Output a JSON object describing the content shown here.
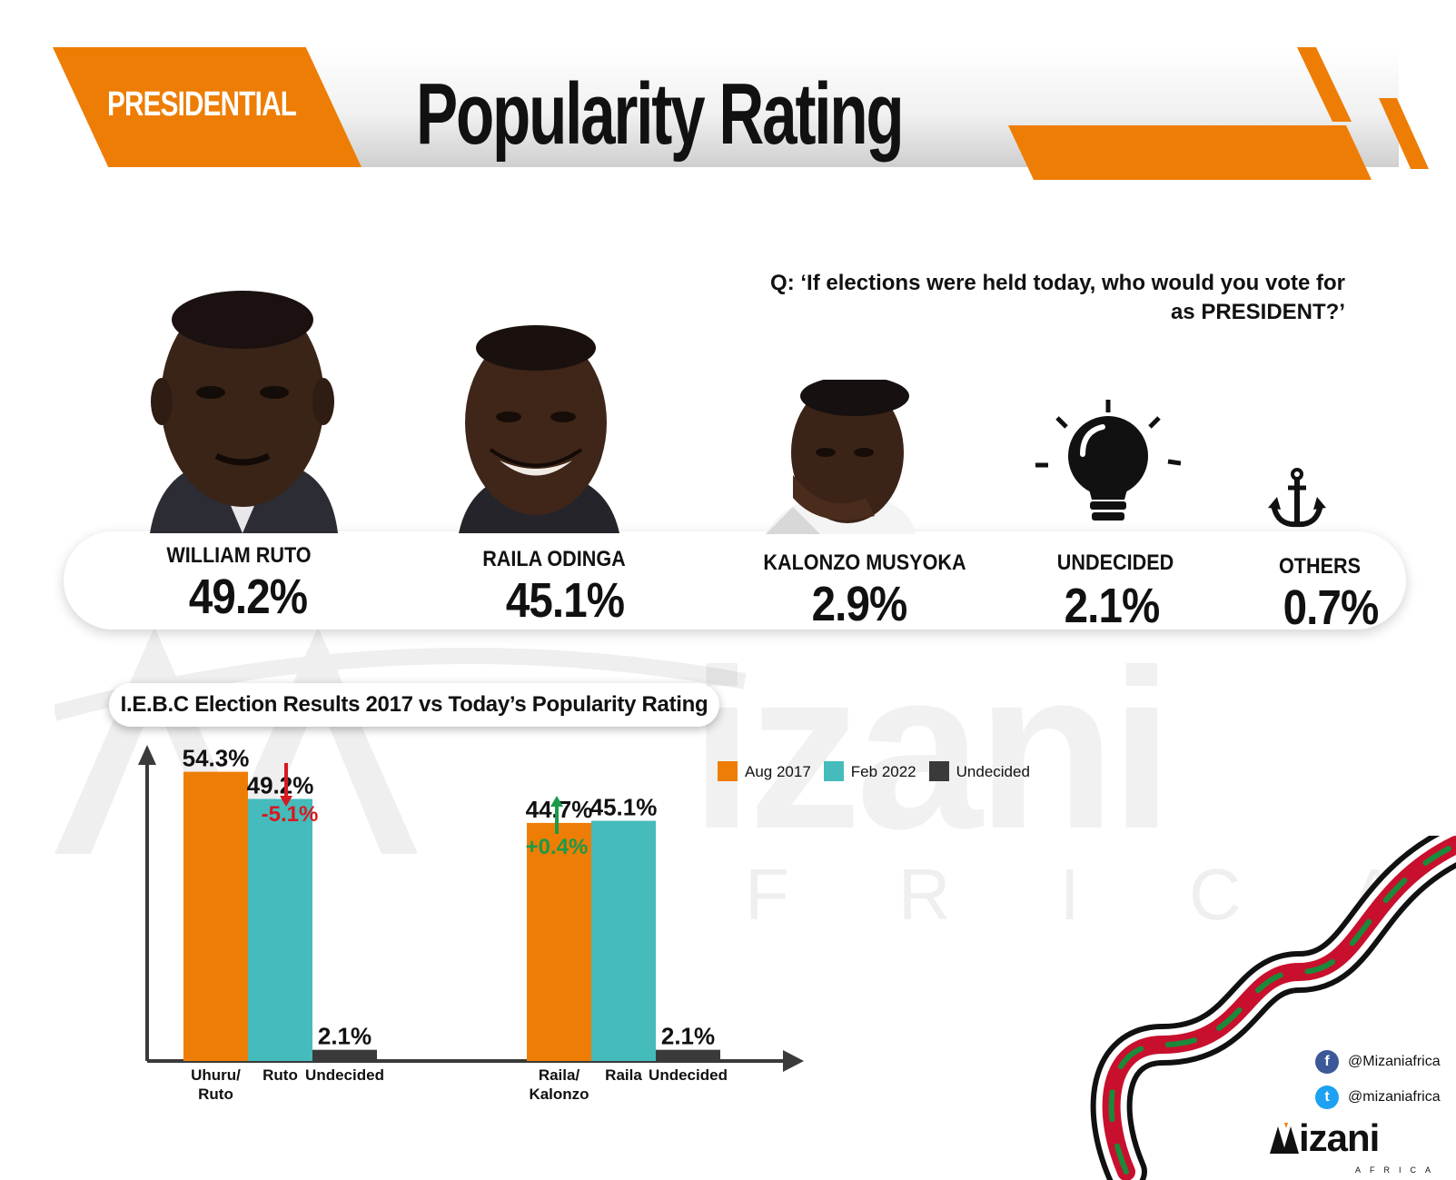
{
  "header": {
    "tag": "PRESIDENTIAL",
    "title": "Popularity Rating"
  },
  "question": {
    "line1": "Q: ‘If elections were held today, who would you vote for",
    "line2": "as PRESIDENT?’"
  },
  "candidates": [
    {
      "name": "WILLIAM RUTO",
      "pct": "49.2%",
      "icon": "photo"
    },
    {
      "name": "RAILA ODINGA",
      "pct": "45.1%",
      "icon": "photo"
    },
    {
      "name": "KALONZO MUSYOKA",
      "pct": "2.9%",
      "icon": "photo"
    },
    {
      "name": "UNDECIDED",
      "pct": "2.1%",
      "icon": "lightbulb-icon"
    },
    {
      "name": "OTHERS",
      "pct": "0.7%",
      "icon": "anchor-icon"
    }
  ],
  "subtitle": "I.E.B.C Election Results 2017 vs Today’s Popularity Rating",
  "watermark": {
    "word": "izani",
    "sub": "FRICA"
  },
  "chart_data": {
    "type": "bar",
    "legend": [
      {
        "name": "Aug 2017",
        "color": "#ee7d05"
      },
      {
        "name": "Feb 2022",
        "color": "#45bbbb"
      },
      {
        "name": "Undecided",
        "color": "#3a3a3a"
      }
    ],
    "groups": [
      {
        "bars": [
          {
            "label": "Uhuru/\nRuto",
            "value": 54.3,
            "display": "54.3%",
            "series": "Aug 2017"
          },
          {
            "label": "Ruto",
            "value": 49.2,
            "display": "49.2%",
            "series": "Feb 2022"
          },
          {
            "label": "Undecided",
            "value": 2.1,
            "display": "2.1%",
            "series": "Undecided"
          }
        ],
        "change": {
          "text": "-5.1%",
          "direction": "down",
          "color": "#d71920"
        }
      },
      {
        "bars": [
          {
            "label": "Raila/\nKalonzo",
            "value": 44.7,
            "display": "44.7%",
            "series": "Aug 2017"
          },
          {
            "label": "Raila",
            "value": 45.1,
            "display": "45.1%",
            "series": "Feb 2022"
          },
          {
            "label": "Undecided",
            "value": 2.1,
            "display": "2.1%",
            "series": "Undecided"
          }
        ],
        "change": {
          "text": "+0.4%",
          "direction": "up",
          "color": "#1a9a49"
        }
      }
    ],
    "ylim": [
      0,
      60
    ],
    "grid": false
  },
  "social": {
    "facebook": "@Mizaniafrica",
    "twitter": "@mizaniafrica"
  },
  "logo": {
    "text": "izani",
    "sub": "AFRICA"
  },
  "colors": {
    "accent": "#ee7d05",
    "teal": "#45bbbb",
    "dark": "#3a3a3a",
    "down": "#d71920",
    "up": "#1a9a49"
  }
}
